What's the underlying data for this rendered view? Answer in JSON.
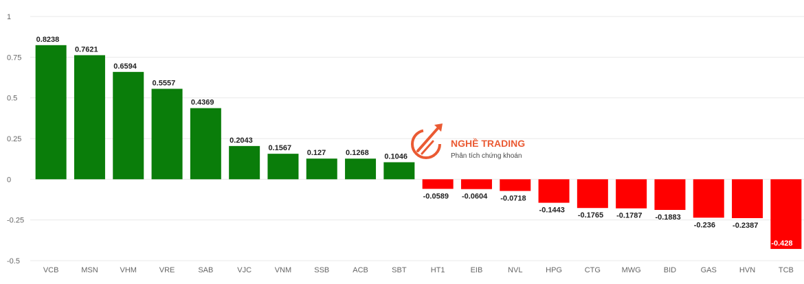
{
  "chart_data": {
    "type": "bar",
    "categories": [
      "VCB",
      "MSN",
      "VHM",
      "VRE",
      "SAB",
      "VJC",
      "VNM",
      "SSB",
      "ACB",
      "SBT",
      "HT1",
      "EIB",
      "NVL",
      "HPG",
      "CTG",
      "MWG",
      "BID",
      "GAS",
      "HVN",
      "TCB"
    ],
    "values": [
      0.8238,
      0.7621,
      0.6594,
      0.5557,
      0.4369,
      0.2043,
      0.1567,
      0.127,
      0.1268,
      0.1046,
      -0.0589,
      -0.0604,
      -0.0718,
      -0.1443,
      -0.1765,
      -0.1787,
      -0.1883,
      -0.236,
      -0.2387,
      -0.428
    ],
    "data_labels": [
      "0.8238",
      "0.7621",
      "0.6594",
      "0.5557",
      "0.4369",
      "0.2043",
      "0.1567",
      "0.127",
      "0.1268",
      "0.1046",
      "-0.0589",
      "-0.0604",
      "-0.0718",
      "-0.1443",
      "-0.1765",
      "-0.1787",
      "-0.1883",
      "-0.236",
      "-0.2387",
      "-0.428"
    ],
    "yticks": [
      "1",
      "0.75",
      "0.5",
      "0.25",
      "0",
      "-0.25",
      "-0.5"
    ],
    "ylim": [
      -0.5,
      1
    ],
    "grid": true,
    "title": "",
    "xlabel": "",
    "ylabel": "",
    "colors": {
      "positive": "#0a7d0a",
      "negative": "#ff0000"
    }
  },
  "watermark": {
    "brand": "NGHỀ TRADING",
    "tagline": "Phân tích chứng khoán",
    "color": "#e8491d"
  }
}
